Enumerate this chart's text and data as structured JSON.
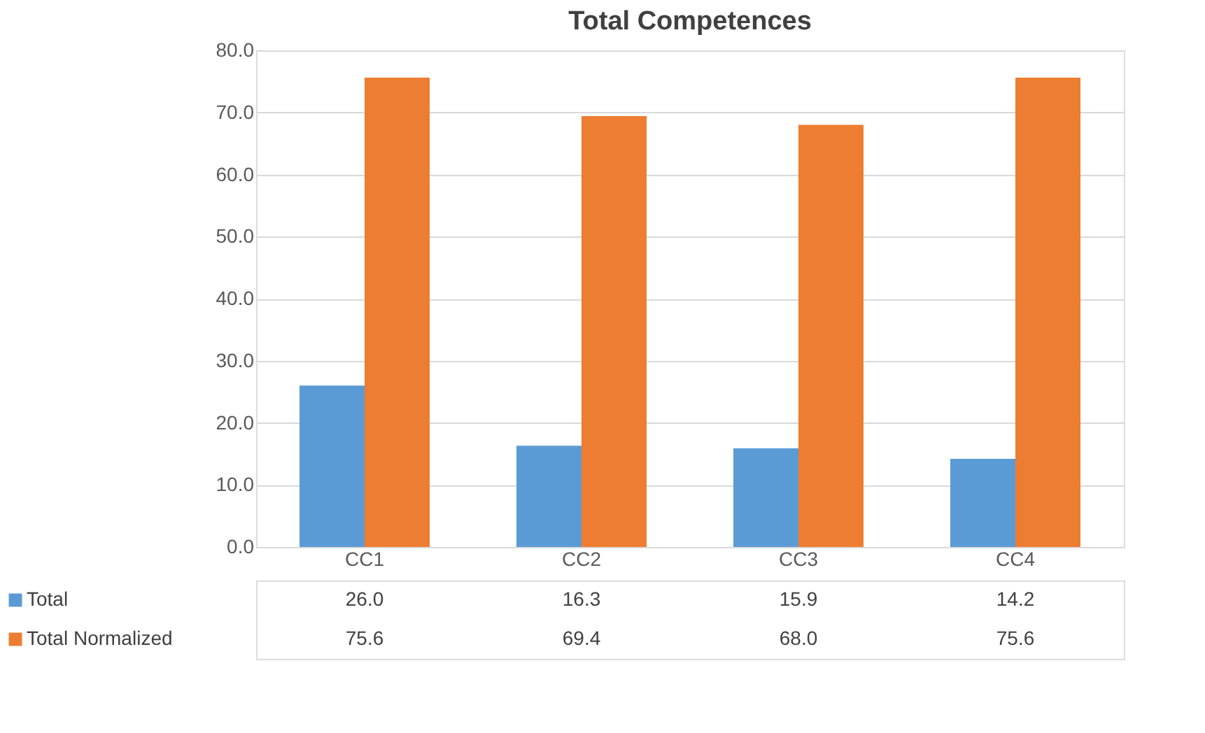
{
  "chart_data": {
    "type": "bar",
    "title": "Total Competences",
    "categories": [
      "CC1",
      "CC2",
      "CC3",
      "CC4"
    ],
    "series": [
      {
        "name": "Total",
        "color": "#5b9bd5",
        "values": [
          26.0,
          16.3,
          15.9,
          14.2
        ],
        "value_labels": [
          "26.0",
          "16.3",
          "15.9",
          "14.2"
        ]
      },
      {
        "name": "Total Normalized",
        "color": "#ed7d31",
        "values": [
          75.6,
          69.4,
          68.0,
          75.6
        ],
        "value_labels": [
          "75.6",
          "69.4",
          "68.0",
          "75.6"
        ]
      }
    ],
    "ylim": [
      0,
      80
    ],
    "yticks": [
      {
        "value": 0,
        "label": "0.0"
      },
      {
        "value": 10,
        "label": "10.0"
      },
      {
        "value": 20,
        "label": "20.0"
      },
      {
        "value": 30,
        "label": "30.0"
      },
      {
        "value": 40,
        "label": "40.0"
      },
      {
        "value": 50,
        "label": "50.0"
      },
      {
        "value": 60,
        "label": "60.0"
      },
      {
        "value": 70,
        "label": "70.0"
      },
      {
        "value": 80,
        "label": "80.0"
      }
    ],
    "grid": "y",
    "legend": "bottom"
  }
}
